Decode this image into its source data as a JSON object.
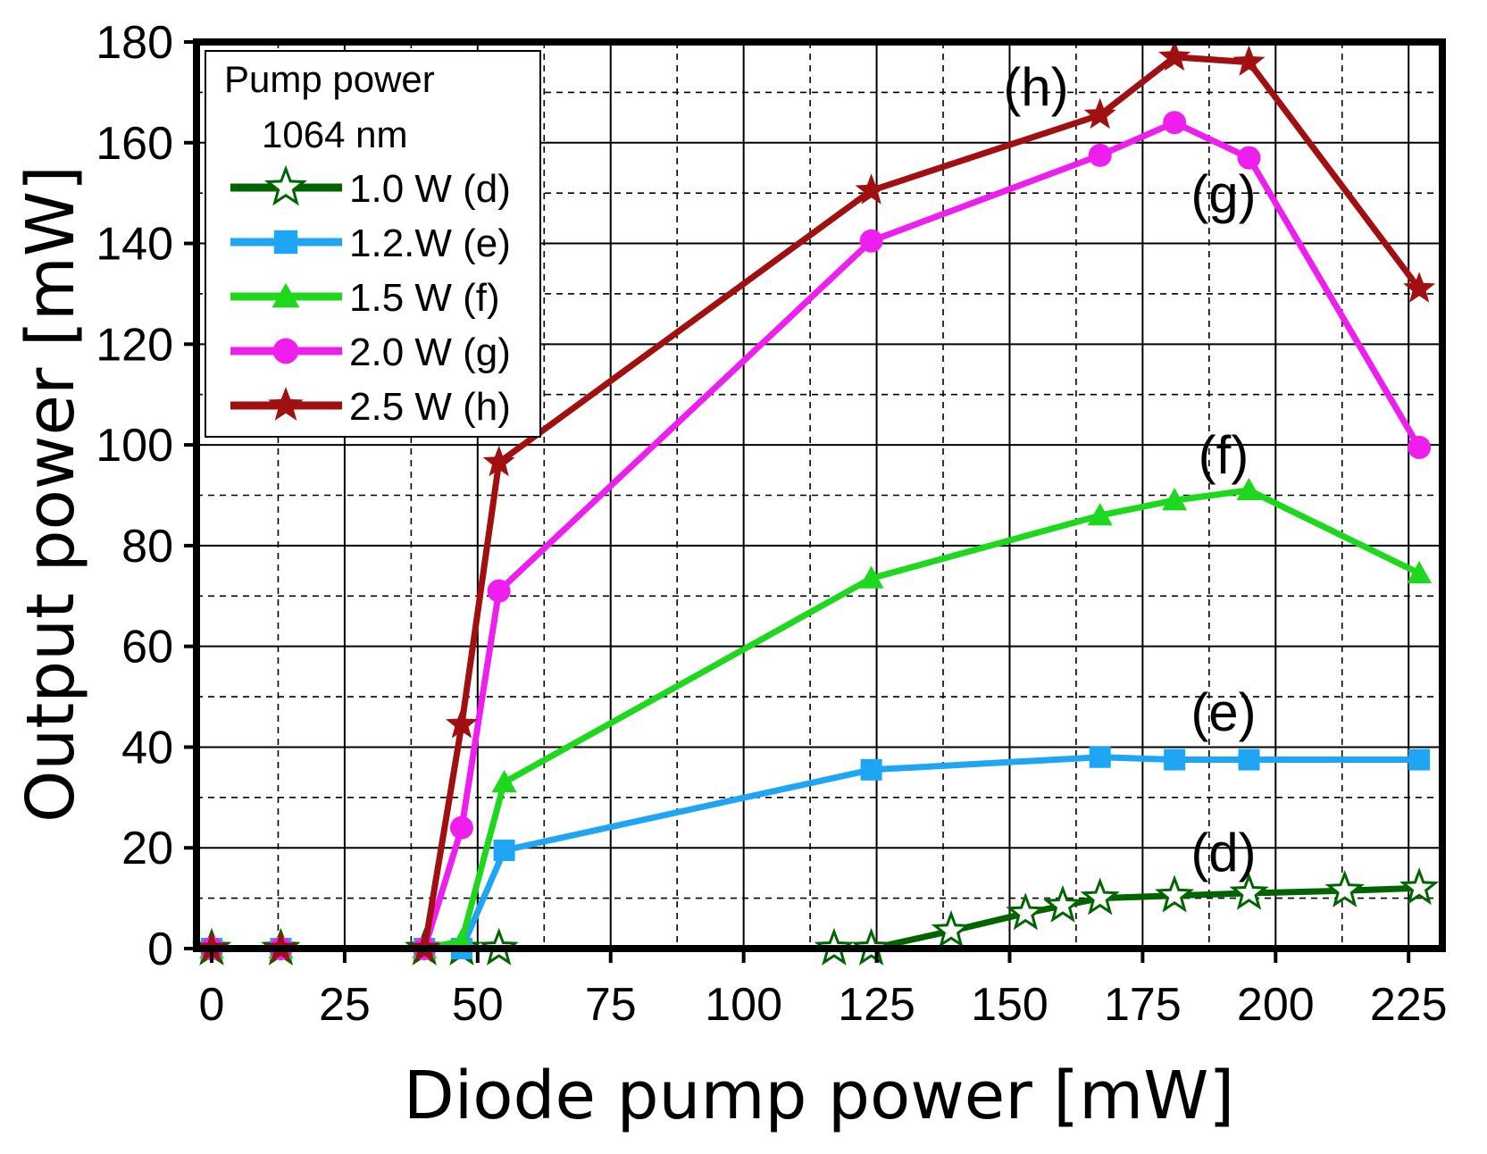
{
  "chart_data": {
    "type": "line",
    "xlabel": "Diode pump power [mW]",
    "ylabel": "Output power [mW]",
    "xlim": [
      0,
      230
    ],
    "ylim": [
      0,
      180
    ],
    "xticks": [
      0,
      25,
      50,
      75,
      100,
      125,
      150,
      175,
      200,
      225
    ],
    "yticks": [
      0,
      20,
      40,
      60,
      80,
      100,
      120,
      140,
      160,
      180
    ],
    "grid": true,
    "legend_placement": "top-left",
    "legend_title": [
      "Pump power",
      "1064 nm"
    ],
    "series": [
      {
        "name": "1.0 W (d)",
        "label": "(d)",
        "color": "#006400",
        "marker": "star-open",
        "x": [
          0,
          13,
          40,
          47,
          54,
          117,
          124,
          139,
          153,
          160,
          167,
          181,
          195,
          213,
          227
        ],
        "y": [
          0,
          0,
          0,
          0,
          0,
          0,
          0,
          3.5,
          7,
          8.5,
          10,
          10.5,
          11,
          11.5,
          12
        ]
      },
      {
        "name": "1.2.W (e)",
        "label": "(e)",
        "color": "#1ea6f5",
        "marker": "square",
        "x": [
          0,
          13,
          40,
          47,
          55,
          124,
          167,
          181,
          195,
          227
        ],
        "y": [
          0,
          0,
          0,
          0,
          19.5,
          35.5,
          38,
          37.5,
          37.5,
          37.5
        ]
      },
      {
        "name": "1.5 W (f)",
        "label": "(f)",
        "color": "#1ed81e",
        "marker": "triangle",
        "x": [
          0,
          13,
          40,
          47,
          55,
          124,
          167,
          181,
          195,
          227
        ],
        "y": [
          0,
          0,
          0,
          1.5,
          33,
          73.5,
          86,
          89,
          91,
          74.5
        ]
      },
      {
        "name": "2.0 W (g)",
        "label": "(g)",
        "color": "#ee1eee",
        "marker": "circle",
        "x": [
          0,
          13,
          40,
          47,
          54,
          124,
          167,
          181,
          195,
          227
        ],
        "y": [
          0,
          0,
          0,
          24,
          71,
          140.5,
          157.5,
          164,
          157,
          99.5
        ]
      },
      {
        "name": "2.5 W (h)",
        "label": "(h)",
        "color": "#a01010",
        "marker": "star",
        "x": [
          0,
          13,
          40,
          47,
          54,
          124,
          167,
          181,
          195,
          227
        ],
        "y": [
          0,
          0,
          0,
          44.5,
          96.5,
          150.5,
          165.5,
          177,
          176,
          131
        ]
      }
    ]
  }
}
